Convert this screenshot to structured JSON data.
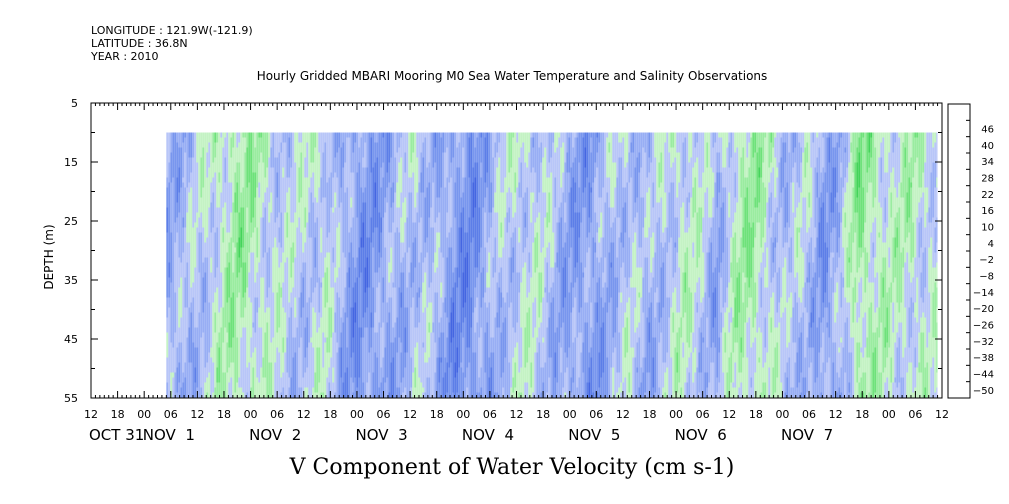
{
  "header": {
    "longitude": "LONGITUDE : 121.9W(-121.9)",
    "latitude": "LATITUDE : 36.8N",
    "year": "YEAR : 2010"
  },
  "chart_data": {
    "type": "heatmap",
    "title": "Hourly Gridded MBARI Mooring M0 Sea Water Temperature and Salinity Observations",
    "xlabel": "V Component of Water Velocity (cm s-1)",
    "ylabel": "DEPTH (m)",
    "ylim": [
      55,
      5
    ],
    "y_ticks": [
      5,
      15,
      25,
      35,
      45,
      55
    ],
    "x_range_hours": [
      -12,
      180
    ],
    "x_tick_labels": [
      "12",
      "18",
      "00",
      "06",
      "12",
      "18",
      "00",
      "06",
      "12",
      "18",
      "00",
      "06",
      "12",
      "18",
      "00",
      "06",
      "12",
      "18",
      "00",
      "06",
      "12",
      "18",
      "00",
      "06",
      "12",
      "18",
      "00",
      "06",
      "12",
      "18",
      "00",
      "06",
      "12"
    ],
    "day_labels": [
      {
        "text": "OCT 31",
        "hour": -12
      },
      {
        "text": "NOV  1",
        "hour": 6
      },
      {
        "text": "NOV  2",
        "hour": 30
      },
      {
        "text": "NOV  3",
        "hour": 54
      },
      {
        "text": "NOV  4",
        "hour": 78
      },
      {
        "text": "NOV  5",
        "hour": 102
      },
      {
        "text": "NOV  6",
        "hour": 126
      },
      {
        "text": "NOV  7",
        "hour": 150
      }
    ],
    "data_extent": {
      "hour_start": 5,
      "hour_end": 179,
      "depth_top": 10,
      "depth_bottom": 55
    },
    "colorbar": {
      "levels": [
        -50,
        -44,
        -38,
        -32,
        -26,
        -20,
        -14,
        -8,
        -2,
        4,
        10,
        16,
        22,
        28,
        34,
        40,
        46
      ],
      "colors": [
        "#00006b",
        "#000a8a",
        "#0a1aa8",
        "#1a32c4",
        "#2e4ed8",
        "#4466e2",
        "#5c7ee8",
        "#7896ee",
        "#98aef4",
        "#b8c6f8",
        "#c4f2c4",
        "#9aeca0",
        "#6ee27a",
        "#44d45a",
        "#22bc42",
        "#109c32",
        "#067c24",
        "#005a16"
      ]
    },
    "field_pattern": {
      "description_free": "",
      "column_hours": [
        5,
        9,
        13,
        17,
        21,
        25,
        29,
        33,
        37,
        41,
        45,
        49,
        53,
        57,
        61,
        65,
        69,
        73,
        77,
        81,
        85,
        89,
        93,
        97,
        101,
        105,
        109,
        113,
        117,
        121,
        125,
        129,
        133,
        137,
        141,
        145,
        149,
        153,
        157,
        161,
        165,
        169,
        173,
        177
      ],
      "column_mean_cm_s": [
        -4,
        -3,
        2,
        8,
        12,
        9,
        4,
        1,
        3,
        5,
        -6,
        -10,
        -8,
        -4,
        2,
        -2,
        -9,
        -12,
        -6,
        1,
        5,
        3,
        -3,
        -7,
        -9,
        -2,
        3,
        -4,
        1,
        7,
        4,
        -5,
        9,
        12,
        6,
        -2,
        2,
        -8,
        -3,
        14,
        10,
        6,
        8,
        5
      ]
    }
  }
}
